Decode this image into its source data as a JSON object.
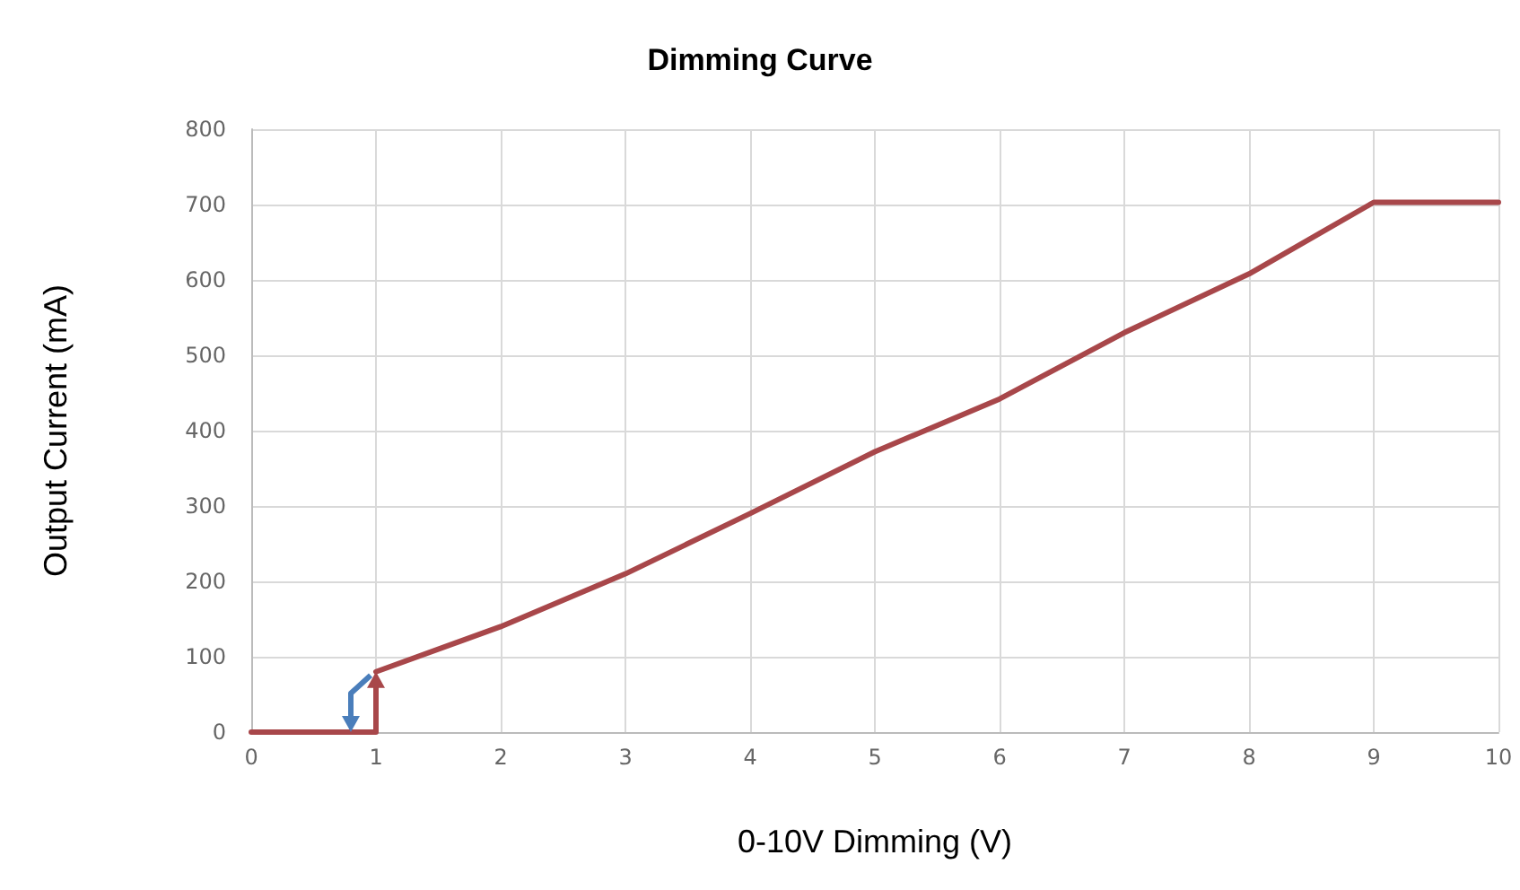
{
  "chart_data": {
    "type": "line",
    "title": "Dimming Curve",
    "xlabel": "0-10V Dimming (V)",
    "ylabel": "Output Current (mA)",
    "series": [
      {
        "color": "#a8474a",
        "x": [
          0,
          1
        ],
        "values": [
          0,
          0
        ]
      },
      {
        "color": "#a8474a",
        "x": [
          1,
          2,
          3,
          4,
          5,
          6,
          7,
          8,
          9,
          10
        ],
        "values": [
          80,
          140,
          210,
          290,
          372,
          442,
          530,
          608,
          703,
          703
        ]
      }
    ],
    "xlim": [
      0,
      10
    ],
    "xticks": [
      0,
      1,
      2,
      3,
      4,
      5,
      6,
      7,
      8,
      9,
      10
    ],
    "ylim": [
      0,
      800
    ],
    "yticks": [
      0,
      100,
      200,
      300,
      400,
      500,
      600,
      700,
      800
    ],
    "grid": true,
    "marker": "none",
    "line_style": "solid"
  }
}
